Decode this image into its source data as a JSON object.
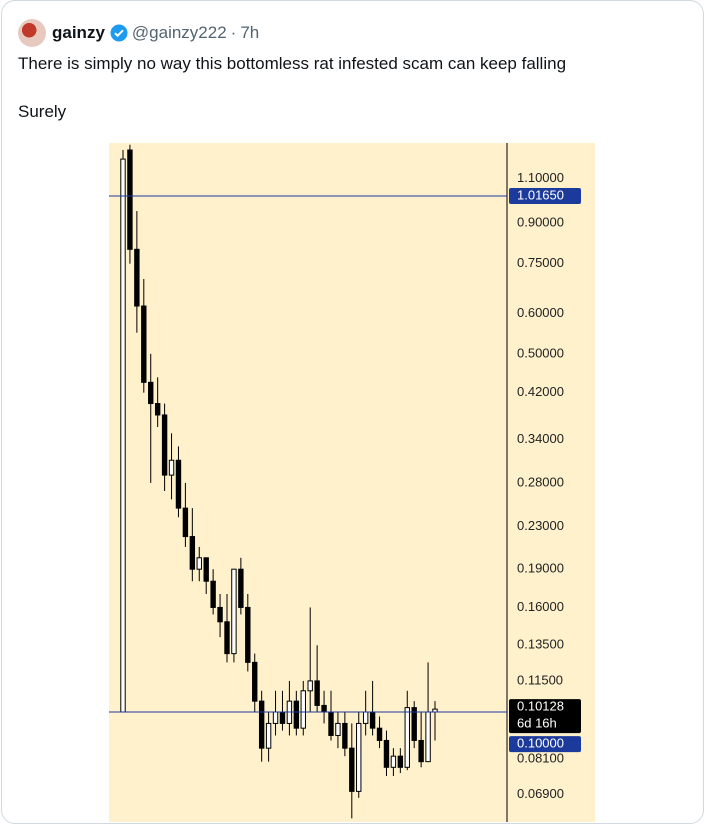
{
  "post": {
    "author": "gainzy",
    "handle": "@gainzy222",
    "separator": "·",
    "time": "7h",
    "text": "There is simply no way this bottomless rat infested scam can keep falling",
    "text2": "Surely"
  },
  "chart_data": {
    "type": "candlestick",
    "log_scale": true,
    "ylim": [
      0.061,
      1.29
    ],
    "background": "#fef1cc",
    "up_color": "#ffffff",
    "down_color": "#000000",
    "yticks": [
      {
        "value": 1.1,
        "label": "1.10000"
      },
      {
        "value": 0.9,
        "label": "0.90000"
      },
      {
        "value": 0.75,
        "label": "0.75000"
      },
      {
        "value": 0.6,
        "label": "0.60000"
      },
      {
        "value": 0.5,
        "label": "0.50000"
      },
      {
        "value": 0.42,
        "label": "0.42000"
      },
      {
        "value": 0.34,
        "label": "0.34000"
      },
      {
        "value": 0.28,
        "label": "0.28000"
      },
      {
        "value": 0.23,
        "label": "0.23000"
      },
      {
        "value": 0.19,
        "label": "0.19000"
      },
      {
        "value": 0.16,
        "label": "0.16000"
      },
      {
        "value": 0.135,
        "label": "0.13500"
      },
      {
        "value": 0.115,
        "label": "0.11500"
      },
      {
        "value": 0.081,
        "label": "0.08100"
      },
      {
        "value": 0.069,
        "label": "0.06900"
      }
    ],
    "price_lines": [
      {
        "value": 1.0165,
        "label": "1.01650",
        "color": "#1b3a9c"
      },
      {
        "value": 0.1,
        "label": "0.10000",
        "color": "#1b3a9c"
      }
    ],
    "last_price": {
      "value": 0.10128,
      "label": "0.10128",
      "countdown": "6d 16h",
      "color": "#000000"
    },
    "ohlc": [
      [
        0.1,
        1.25,
        0.1,
        1.2
      ],
      [
        1.25,
        1.28,
        0.75,
        0.8
      ],
      [
        0.8,
        0.95,
        0.55,
        0.62
      ],
      [
        0.62,
        0.7,
        0.42,
        0.44
      ],
      [
        0.44,
        0.5,
        0.28,
        0.4
      ],
      [
        0.4,
        0.45,
        0.36,
        0.38
      ],
      [
        0.38,
        0.4,
        0.27,
        0.29
      ],
      [
        0.29,
        0.35,
        0.26,
        0.31
      ],
      [
        0.31,
        0.33,
        0.24,
        0.25
      ],
      [
        0.25,
        0.28,
        0.21,
        0.22
      ],
      [
        0.22,
        0.25,
        0.18,
        0.19
      ],
      [
        0.19,
        0.21,
        0.18,
        0.2
      ],
      [
        0.2,
        0.2,
        0.17,
        0.18
      ],
      [
        0.18,
        0.19,
        0.155,
        0.16
      ],
      [
        0.16,
        0.17,
        0.14,
        0.15
      ],
      [
        0.15,
        0.17,
        0.125,
        0.13
      ],
      [
        0.13,
        0.19,
        0.125,
        0.19
      ],
      [
        0.19,
        0.2,
        0.155,
        0.16
      ],
      [
        0.16,
        0.17,
        0.12,
        0.125
      ],
      [
        0.125,
        0.13,
        0.1,
        0.105
      ],
      [
        0.105,
        0.11,
        0.08,
        0.085
      ],
      [
        0.085,
        0.1,
        0.08,
        0.095
      ],
      [
        0.095,
        0.11,
        0.09,
        0.1
      ],
      [
        0.1,
        0.11,
        0.092,
        0.095
      ],
      [
        0.095,
        0.115,
        0.09,
        0.105
      ],
      [
        0.105,
        0.11,
        0.09,
        0.093
      ],
      [
        0.093,
        0.115,
        0.09,
        0.11
      ],
      [
        0.11,
        0.16,
        0.1,
        0.115
      ],
      [
        0.115,
        0.135,
        0.1,
        0.103
      ],
      [
        0.103,
        0.11,
        0.095,
        0.1
      ],
      [
        0.1,
        0.11,
        0.088,
        0.09
      ],
      [
        0.09,
        0.1,
        0.085,
        0.095
      ],
      [
        0.095,
        0.1,
        0.082,
        0.085
      ],
      [
        0.085,
        0.095,
        0.062,
        0.07
      ],
      [
        0.07,
        0.1,
        0.068,
        0.095
      ],
      [
        0.095,
        0.11,
        0.09,
        0.1
      ],
      [
        0.1,
        0.115,
        0.09,
        0.093
      ],
      [
        0.093,
        0.098,
        0.085,
        0.088
      ],
      [
        0.088,
        0.092,
        0.075,
        0.078
      ],
      [
        0.078,
        0.085,
        0.075,
        0.082
      ],
      [
        0.082,
        0.085,
        0.076,
        0.078
      ],
      [
        0.078,
        0.11,
        0.077,
        0.102
      ],
      [
        0.102,
        0.105,
        0.085,
        0.088
      ],
      [
        0.088,
        0.1,
        0.078,
        0.08
      ],
      [
        0.08,
        0.125,
        0.08,
        0.1
      ],
      [
        0.1,
        0.105,
        0.088,
        0.1013
      ]
    ]
  }
}
